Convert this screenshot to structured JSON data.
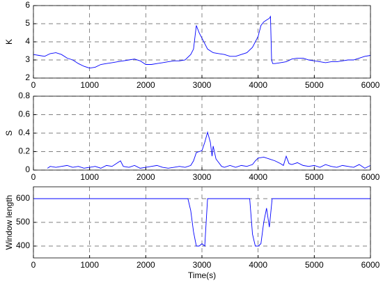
{
  "chart_data": [
    {
      "type": "line",
      "ylabel": "K",
      "color": "#0000ff",
      "grid": true,
      "x": [
        0,
        100,
        200,
        300,
        400,
        500,
        600,
        700,
        800,
        900,
        1000,
        1100,
        1200,
        1300,
        1400,
        1500,
        1600,
        1700,
        1800,
        1900,
        2000,
        2100,
        2200,
        2300,
        2400,
        2500,
        2600,
        2700,
        2800,
        2850,
        2900,
        2950,
        3000,
        3050,
        3100,
        3200,
        3300,
        3400,
        3500,
        3600,
        3700,
        3800,
        3900,
        4000,
        4050,
        4100,
        4150,
        4200,
        4220,
        4240,
        4260,
        4300,
        4400,
        4500,
        4600,
        4700,
        4800,
        4900,
        5000,
        5100,
        5200,
        5300,
        5400,
        5500,
        5600,
        5700,
        5800,
        5900,
        6000
      ],
      "values": [
        3.3,
        3.25,
        3.2,
        3.35,
        3.4,
        3.3,
        3.1,
        3.0,
        2.8,
        2.65,
        2.55,
        2.6,
        2.75,
        2.8,
        2.85,
        2.9,
        2.95,
        3.0,
        3.05,
        2.95,
        2.75,
        2.75,
        2.8,
        2.85,
        2.9,
        2.95,
        2.95,
        3.0,
        3.3,
        3.6,
        4.9,
        4.5,
        4.2,
        3.9,
        3.6,
        3.4,
        3.35,
        3.3,
        3.2,
        3.2,
        3.3,
        3.4,
        3.7,
        4.3,
        4.9,
        5.1,
        5.2,
        5.3,
        5.4,
        3.0,
        2.8,
        2.8,
        2.85,
        2.9,
        3.05,
        3.1,
        3.1,
        3.0,
        2.95,
        2.9,
        2.85,
        2.9,
        2.9,
        2.95,
        3.0,
        3.0,
        3.1,
        3.2,
        3.25
      ],
      "xlim": [
        0,
        6000
      ],
      "xticks": [
        0,
        1000,
        2000,
        3000,
        4000,
        5000,
        6000
      ],
      "ylim": [
        2,
        6
      ],
      "yticks": [
        2,
        3,
        4,
        5,
        6
      ]
    },
    {
      "type": "line",
      "ylabel": "S",
      "color": "#0000ff",
      "grid": true,
      "x": [
        250,
        300,
        400,
        500,
        600,
        700,
        800,
        900,
        1000,
        1100,
        1200,
        1300,
        1400,
        1500,
        1550,
        1600,
        1700,
        1800,
        1900,
        2000,
        2100,
        2200,
        2300,
        2400,
        2500,
        2600,
        2700,
        2800,
        2850,
        2900,
        3000,
        3050,
        3100,
        3150,
        3180,
        3200,
        3250,
        3300,
        3350,
        3400,
        3500,
        3600,
        3700,
        3800,
        3900,
        3950,
        4000,
        4100,
        4200,
        4300,
        4400,
        4450,
        4500,
        4550,
        4600,
        4700,
        4800,
        4900,
        5000,
        5100,
        5200,
        5300,
        5400,
        5500,
        5600,
        5700,
        5800,
        5900,
        6000
      ],
      "values": [
        0.02,
        0.04,
        0.03,
        0.04,
        0.05,
        0.03,
        0.04,
        0.02,
        0.03,
        0.04,
        0.02,
        0.05,
        0.04,
        0.08,
        0.1,
        0.04,
        0.03,
        0.05,
        0.02,
        0.03,
        0.04,
        0.05,
        0.03,
        0.02,
        0.03,
        0.04,
        0.03,
        0.05,
        0.1,
        0.19,
        0.21,
        0.3,
        0.41,
        0.3,
        0.15,
        0.26,
        0.12,
        0.08,
        0.04,
        0.03,
        0.05,
        0.03,
        0.05,
        0.04,
        0.06,
        0.1,
        0.13,
        0.14,
        0.12,
        0.1,
        0.07,
        0.05,
        0.15,
        0.07,
        0.06,
        0.08,
        0.05,
        0.04,
        0.05,
        0.03,
        0.06,
        0.04,
        0.03,
        0.05,
        0.04,
        0.03,
        0.06,
        0.02,
        0.05
      ],
      "xlim": [
        0,
        6000
      ],
      "xticks": [
        0,
        1000,
        2000,
        3000,
        4000,
        5000,
        6000
      ],
      "ylim": [
        0,
        0.8
      ],
      "yticks": [
        0,
        0.2,
        0.4,
        0.6,
        0.8
      ]
    },
    {
      "type": "line",
      "ylabel": "Window length",
      "xlabel": "Time(s)",
      "color": "#0000ff",
      "grid": true,
      "x": [
        0,
        2750,
        2800,
        2850,
        2900,
        2950,
        3000,
        3050,
        3100,
        3150,
        3850,
        3900,
        3950,
        4000,
        4050,
        4100,
        4150,
        4200,
        4250,
        6000
      ],
      "values": [
        600,
        600,
        550,
        460,
        400,
        400,
        410,
        400,
        600,
        600,
        600,
        450,
        400,
        400,
        410,
        500,
        560,
        480,
        600,
        600
      ],
      "xlim": [
        0,
        6000
      ],
      "xticks": [
        0,
        1000,
        2000,
        3000,
        4000,
        5000,
        6000
      ],
      "ylim": [
        350,
        650
      ],
      "yticks": [
        400,
        500,
        600
      ]
    }
  ]
}
